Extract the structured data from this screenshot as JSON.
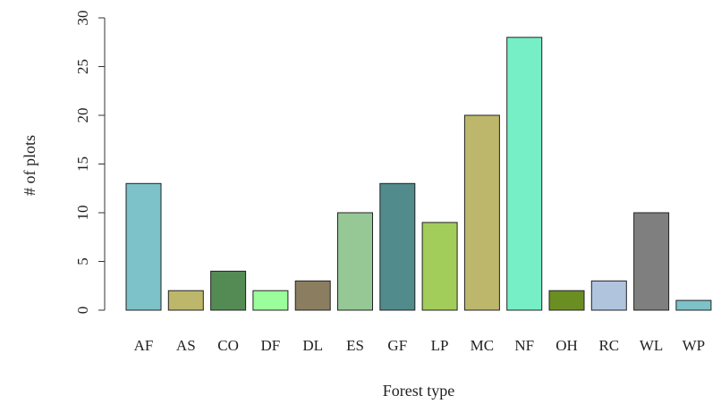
{
  "chart_data": {
    "type": "bar",
    "xlabel": "Forest type",
    "ylabel": "# of plots",
    "ylim": [
      0,
      30
    ],
    "yticks": [
      0,
      5,
      10,
      15,
      20,
      25,
      30
    ],
    "grid": false,
    "categories": [
      "AF",
      "AS",
      "CO",
      "DF",
      "DL",
      "ES",
      "GF",
      "LP",
      "MC",
      "NF",
      "OH",
      "RC",
      "WL",
      "WP"
    ],
    "values": [
      13,
      2,
      4,
      2,
      3,
      10,
      13,
      9,
      20,
      28,
      2,
      3,
      10,
      1
    ],
    "colors": [
      "#7cc2c8",
      "#bdb76b",
      "#548b54",
      "#9aff9a",
      "#8b7d60",
      "#96c896",
      "#528b8b",
      "#a2cd5a",
      "#bdb76b",
      "#76eec6",
      "#6b8e23",
      "#b0c4de",
      "#7f7f7f",
      "#7cc2c8"
    ]
  }
}
